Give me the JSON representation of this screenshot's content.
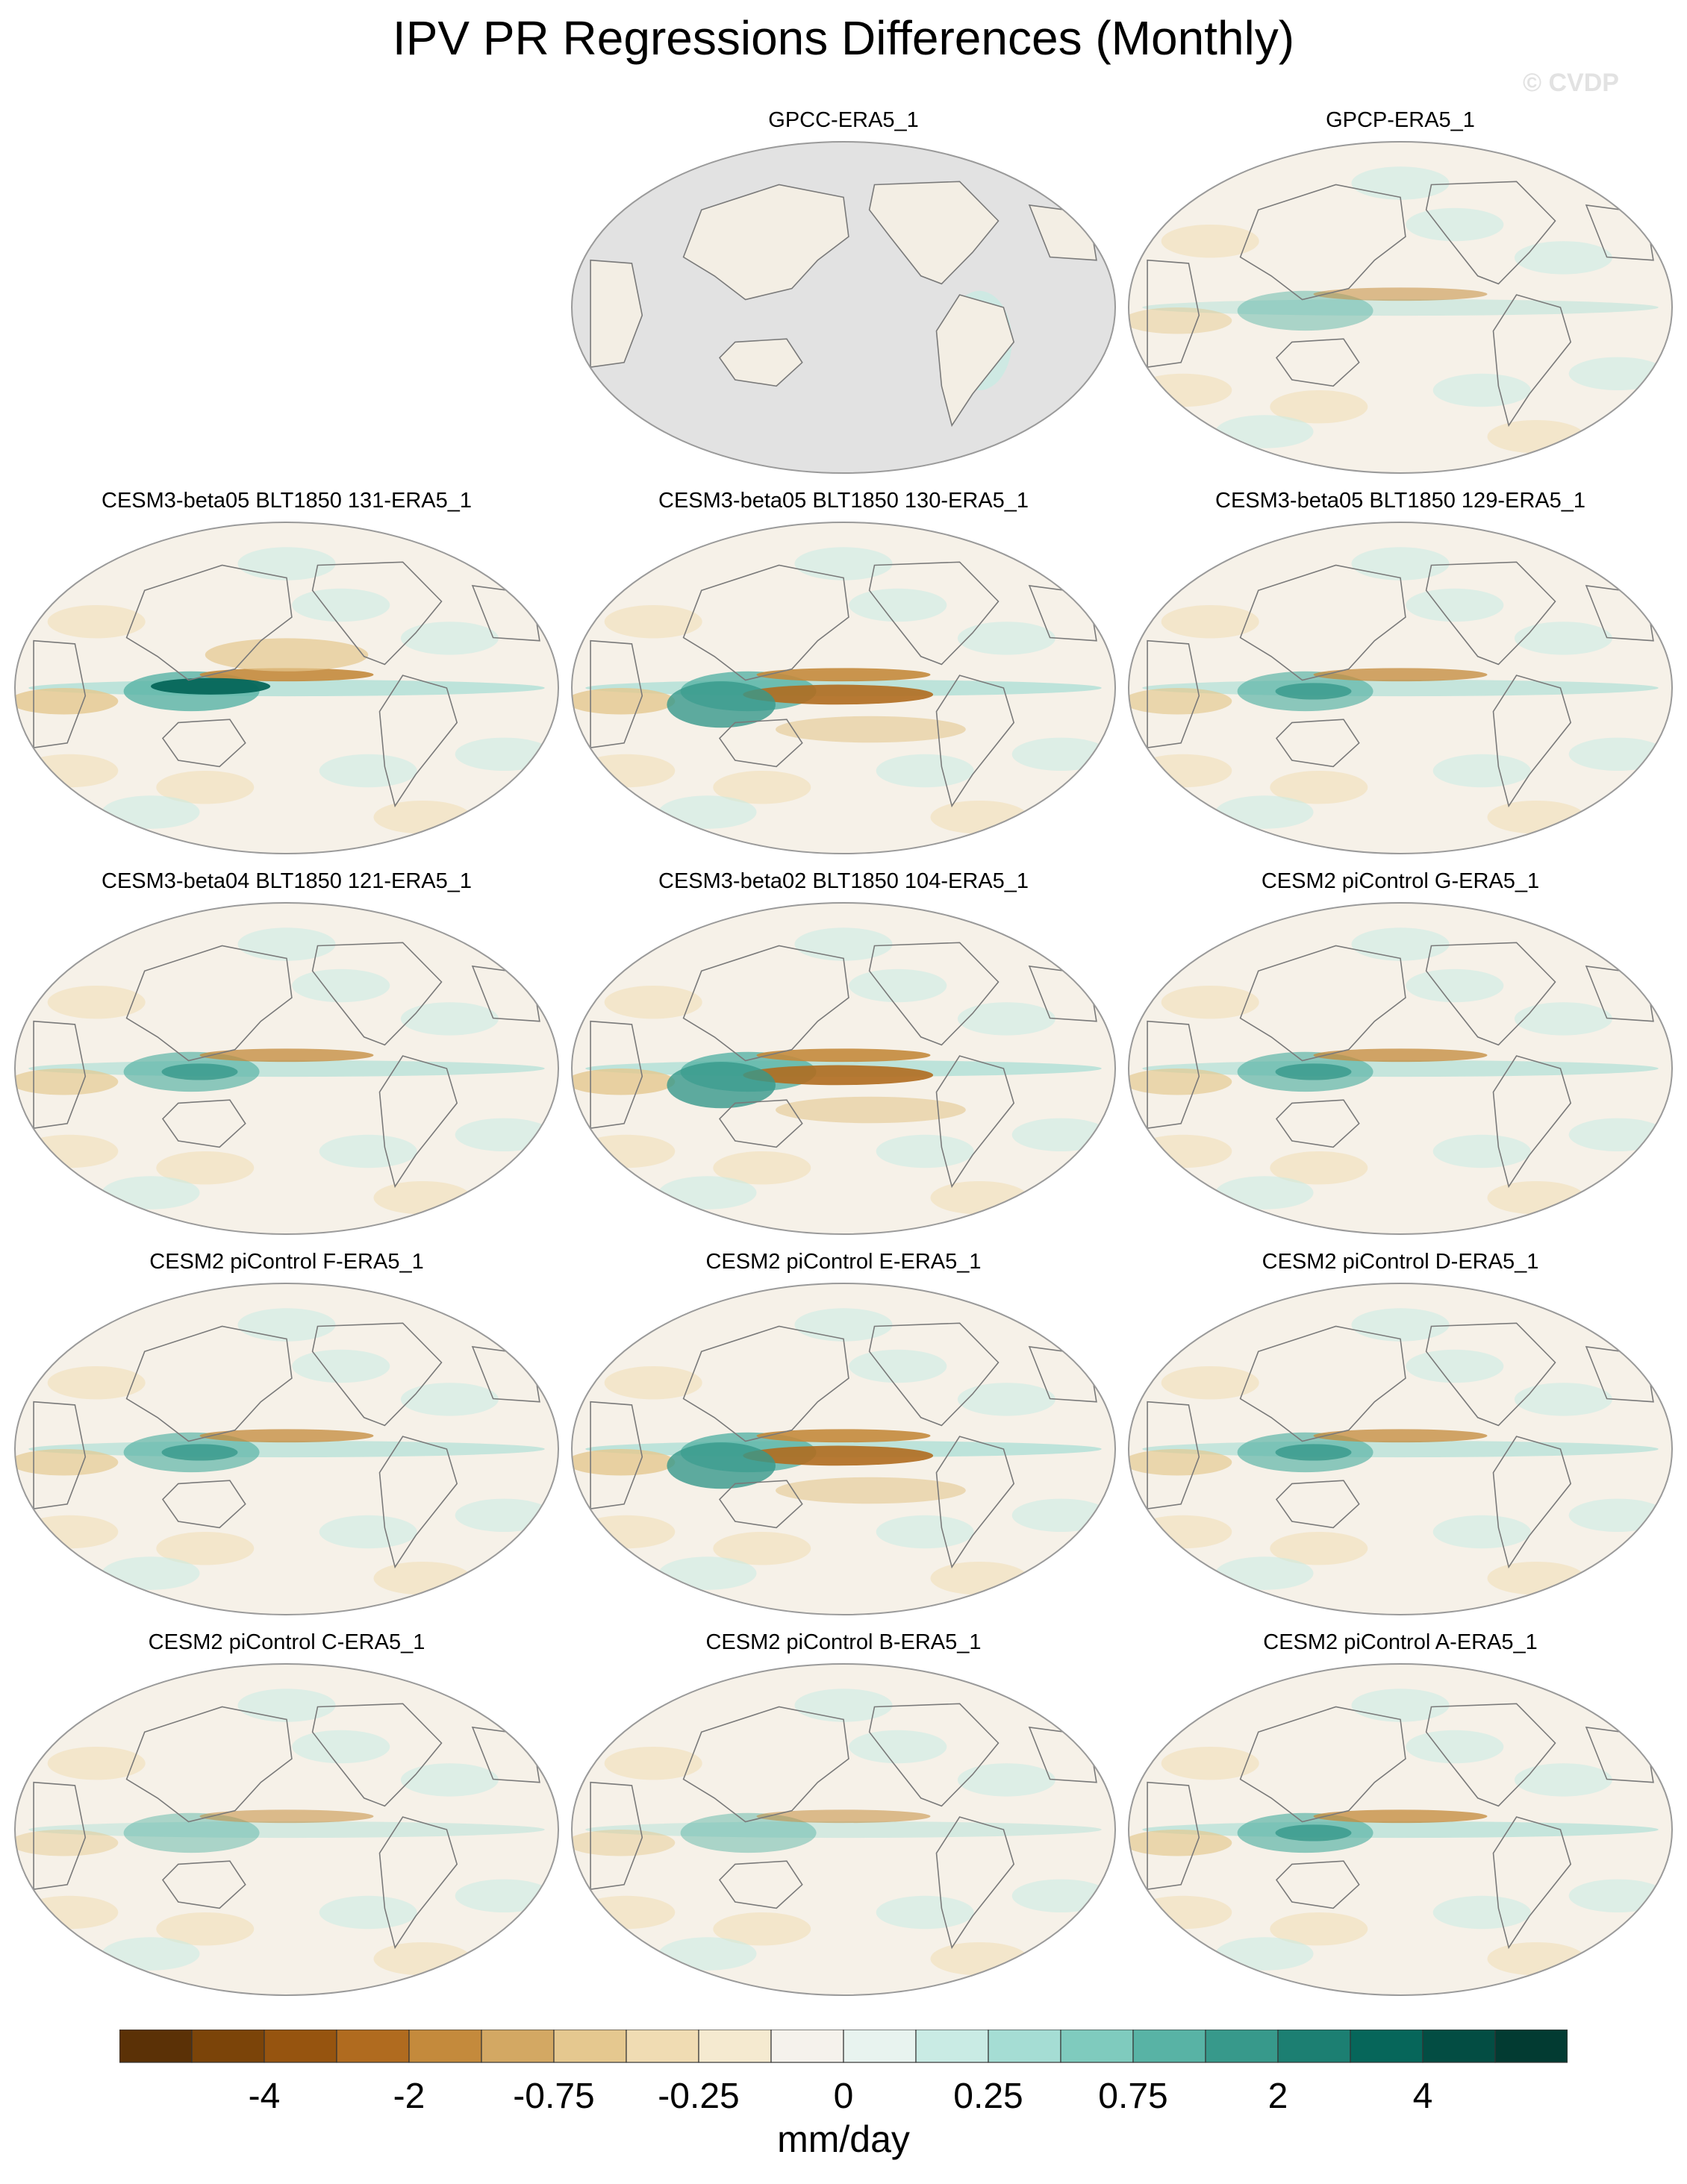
{
  "title": "IPV PR Regressions Differences (Monthly)",
  "watermark": "© CVDP",
  "panels": [
    {
      "label": "GPCC-ERA5_1",
      "land_only": true
    },
    {
      "label": "GPCP-ERA5_1",
      "pattern": "weak"
    },
    {
      "label": "CESM3-beta05 BLT1850 131-ERA5_1",
      "pattern": "strong_west"
    },
    {
      "label": "CESM3-beta05 BLT1850 130-ERA5_1",
      "pattern": "strong_central"
    },
    {
      "label": "CESM3-beta05 BLT1850 129-ERA5_1",
      "pattern": "moderate"
    },
    {
      "label": "CESM3-beta04 BLT1850 121-ERA5_1",
      "pattern": "moderate"
    },
    {
      "label": "CESM3-beta02 BLT1850 104-ERA5_1",
      "pattern": "strong_central"
    },
    {
      "label": "CESM2 piControl G-ERA5_1",
      "pattern": "moderate"
    },
    {
      "label": "CESM2 piControl F-ERA5_1",
      "pattern": "moderate"
    },
    {
      "label": "CESM2 piControl E-ERA5_1",
      "pattern": "strong_central"
    },
    {
      "label": "CESM2 piControl D-ERA5_1",
      "pattern": "moderate"
    },
    {
      "label": "CESM2 piControl C-ERA5_1",
      "pattern": "weak"
    },
    {
      "label": "CESM2 piControl B-ERA5_1",
      "pattern": "weak"
    },
    {
      "label": "CESM2 piControl A-ERA5_1",
      "pattern": "moderate"
    }
  ],
  "colorbar": {
    "colors": [
      "#5b3106",
      "#7b4409",
      "#96540f",
      "#b06b1f",
      "#c48a3c",
      "#d3a863",
      "#e5c88f",
      "#f0dcb3",
      "#f5ead0",
      "#f5f2ec",
      "#e8f3ef",
      "#c9ebe4",
      "#a5ddd4",
      "#7fcbbe",
      "#58b3a5",
      "#37998b",
      "#1c7f72",
      "#06665a",
      "#034d43",
      "#023b32"
    ],
    "tick_labels": [
      "-4",
      "-2",
      "-0.75",
      "-0.25",
      "0",
      "0.25",
      "0.75",
      "2",
      "4"
    ],
    "units": "mm/day"
  }
}
